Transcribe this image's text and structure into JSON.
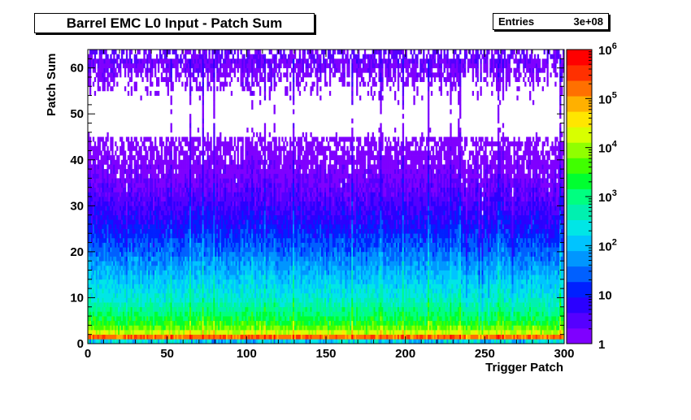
{
  "chart_data": {
    "type": "heatmap",
    "title": "Barrel EMC L0 Input - Patch Sum",
    "xlabel": "Trigger Patch",
    "ylabel": "Patch Sum",
    "xlim": [
      0,
      300
    ],
    "ylim": [
      0,
      64
    ],
    "x_ticks": [
      "0",
      "50",
      "100",
      "150",
      "200",
      "250",
      "300"
    ],
    "y_ticks": [
      "0",
      "10",
      "20",
      "30",
      "40",
      "50",
      "60"
    ],
    "z_scale": "log",
    "zlim": [
      1,
      1000000
    ],
    "z_ticks": [
      {
        "base": "1",
        "exp": ""
      },
      {
        "base": "10",
        "exp": ""
      },
      {
        "base": "10",
        "exp": "2"
      },
      {
        "base": "10",
        "exp": "3"
      },
      {
        "base": "10",
        "exp": "4"
      },
      {
        "base": "10",
        "exp": "5"
      },
      {
        "base": "10",
        "exp": "6"
      }
    ],
    "stats": {
      "label": "Entries",
      "value": "3e+08"
    },
    "approx_count_profile_by_patch_sum": [
      {
        "y": 0,
        "count": 300
      },
      {
        "y": 1,
        "count": 1000000
      },
      {
        "y": 2,
        "count": 30000
      },
      {
        "y": 3,
        "count": 8000
      },
      {
        "y": 5,
        "count": 2000
      },
      {
        "y": 10,
        "count": 300
      },
      {
        "y": 15,
        "count": 100
      },
      {
        "y": 20,
        "count": 30
      },
      {
        "y": 25,
        "count": 10
      },
      {
        "y": 30,
        "count": 4
      },
      {
        "y": 35,
        "count": 2
      },
      {
        "y": 40,
        "count": 1
      },
      {
        "y": 50,
        "count": 0.3
      },
      {
        "y": 62,
        "count": 2
      }
    ],
    "grid": false
  },
  "palette": [
    "#7f00ff",
    "#5500ff",
    "#2b00ff",
    "#0020ff",
    "#0060ff",
    "#0096ff",
    "#00c4ff",
    "#00e6e6",
    "#00f0b0",
    "#00ff80",
    "#00ff30",
    "#40ff00",
    "#90ff00",
    "#d8ff00",
    "#ffe600",
    "#ffb000",
    "#ff7000",
    "#ff3000",
    "#ff0000"
  ]
}
